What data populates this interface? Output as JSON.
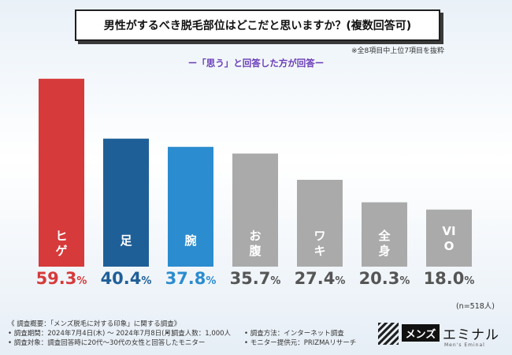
{
  "chart_data": {
    "type": "bar",
    "title": "男性がするべき脱毛部位はどこだと思いますか？(複数回答可)",
    "subtitle": "ー「思う」と回答した方が回答ー",
    "note": "※全8項目中上位7項目を抜粋",
    "categories": [
      "ヒゲ",
      "足",
      "腕",
      "お腹",
      "ワキ",
      "全身",
      "VIO"
    ],
    "values": [
      59.3,
      40.4,
      37.8,
      35.7,
      27.4,
      20.3,
      18.0
    ],
    "value_labels": [
      {
        "num": "59.3",
        "pct": "%"
      },
      {
        "num": "40.4",
        "pct": "%"
      },
      {
        "num": "37.8",
        "pct": "%"
      },
      {
        "num": "35.7",
        "pct": "%"
      },
      {
        "num": "27.4",
        "pct": "%"
      },
      {
        "num": "20.3",
        "pct": "%"
      },
      {
        "num": "18.0",
        "pct": "%"
      }
    ],
    "colors": [
      "#d63a3a",
      "#1f5f98",
      "#2b8ccf",
      "#aaaaaa",
      "#aaaaaa",
      "#aaaaaa",
      "#aaaaaa"
    ],
    "value_colors": [
      "#d63a3a",
      "#1f5f98",
      "#2b8ccf",
      "#555555",
      "#555555",
      "#555555",
      "#555555"
    ],
    "ylim": [
      0,
      60
    ],
    "n_label": "(n=518人)"
  },
  "footer": {
    "overview": "《 調査概要：「メンズ脱毛に対する印象」に関する調査》",
    "period": "• 調査期間：2024年7月4日(木) ～ 2024年7月8日(月)",
    "count": "• 調査人数：1,000人",
    "method": "• 調査方法：インターネット調査",
    "target": "• 調査対象：調査回答時に20代～30代の女性と回答したモニター",
    "provider": "• モニター提供元：PRIZMAリサーチ"
  },
  "logo": {
    "dark": "メンズ",
    "light": "エミナル",
    "sub": "Men's Eminal"
  }
}
